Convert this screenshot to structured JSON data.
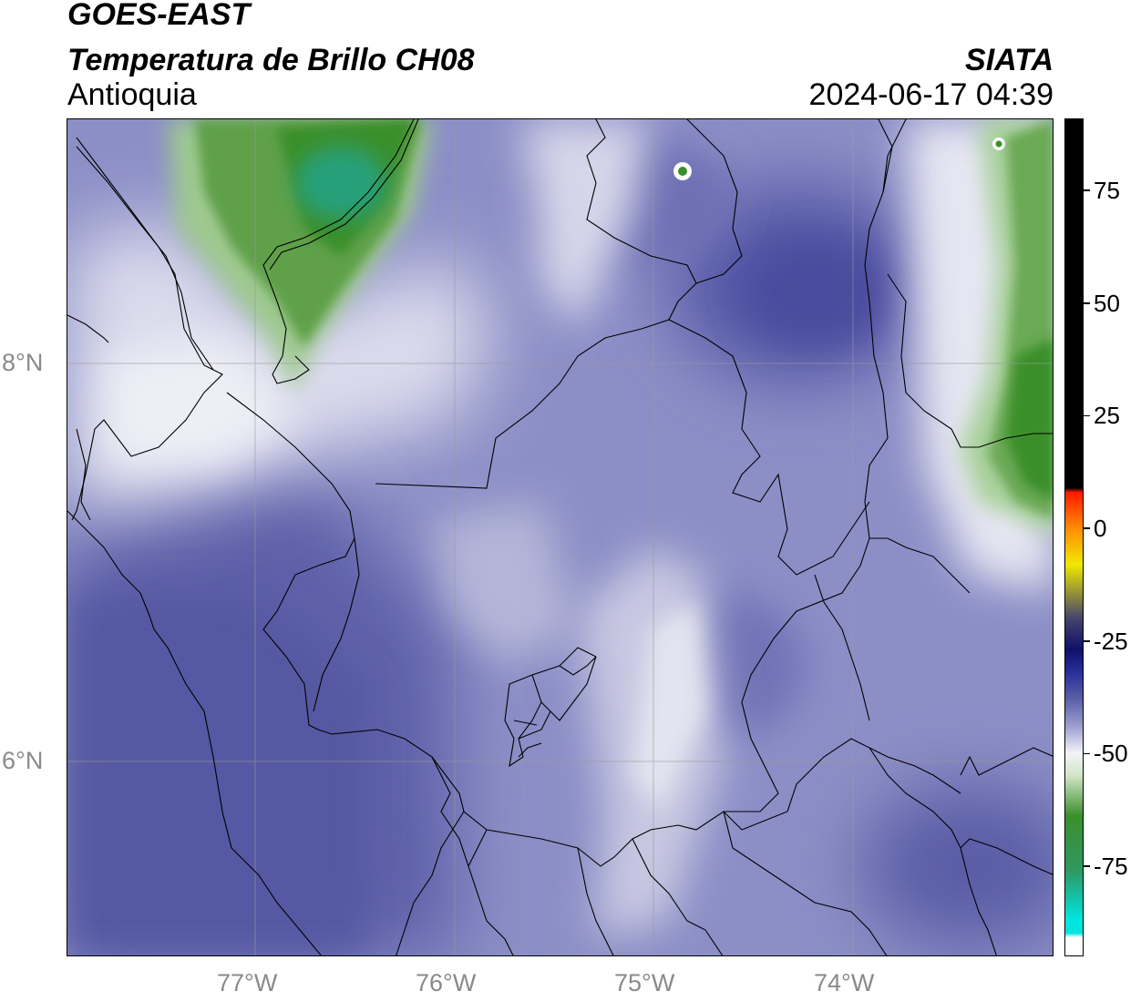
{
  "header": {
    "satellite": "GOES-EAST",
    "product": "Temperatura de Brillo CH08",
    "region": "Antioquia",
    "organization": "SIATA",
    "timestamp": "2024-06-17 04:39"
  },
  "map": {
    "longitude_labels": [
      "77°W",
      "76°W",
      "75°W",
      "74°W"
    ],
    "latitude_labels": [
      "8°N",
      "6°N"
    ]
  },
  "colorbar": {
    "tick_labels": [
      "75",
      "50",
      "25",
      "0",
      "-25",
      "-50",
      "-75"
    ],
    "tick_values": [
      75,
      50,
      25,
      0,
      -25,
      -50,
      -75
    ],
    "range": [
      -95,
      91
    ],
    "colors": {
      "cold_cyan": "#00e5e0",
      "green": "#3a8f2c",
      "white": "#f4f4f8",
      "blue_purple": "#5b5fa8",
      "navy": "#10106a",
      "yellow": "#f0e800",
      "orange": "#ff8c00",
      "red": "#ff1a00",
      "black": "#000000"
    }
  }
}
